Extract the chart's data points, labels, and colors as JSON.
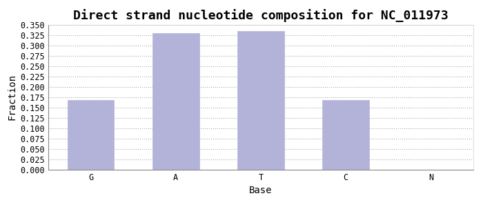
{
  "title": "Direct strand nucleotide composition for NC_011973",
  "xlabel": "Base",
  "ylabel": "Fraction",
  "categories": [
    "G",
    "A",
    "T",
    "C",
    "N"
  ],
  "values": [
    0.168,
    0.33,
    0.335,
    0.168,
    0.0
  ],
  "bar_color": "#b3b3d9",
  "bar_edge_color": "#b3b3d9",
  "ylim": [
    0.0,
    0.35
  ],
  "ytick_step": 0.025,
  "background_color": "#ffffff",
  "grid_color": "#aaaaaa",
  "title_fontsize": 13,
  "axis_fontsize": 10,
  "tick_fontsize": 8.5,
  "bar_width": 0.55
}
